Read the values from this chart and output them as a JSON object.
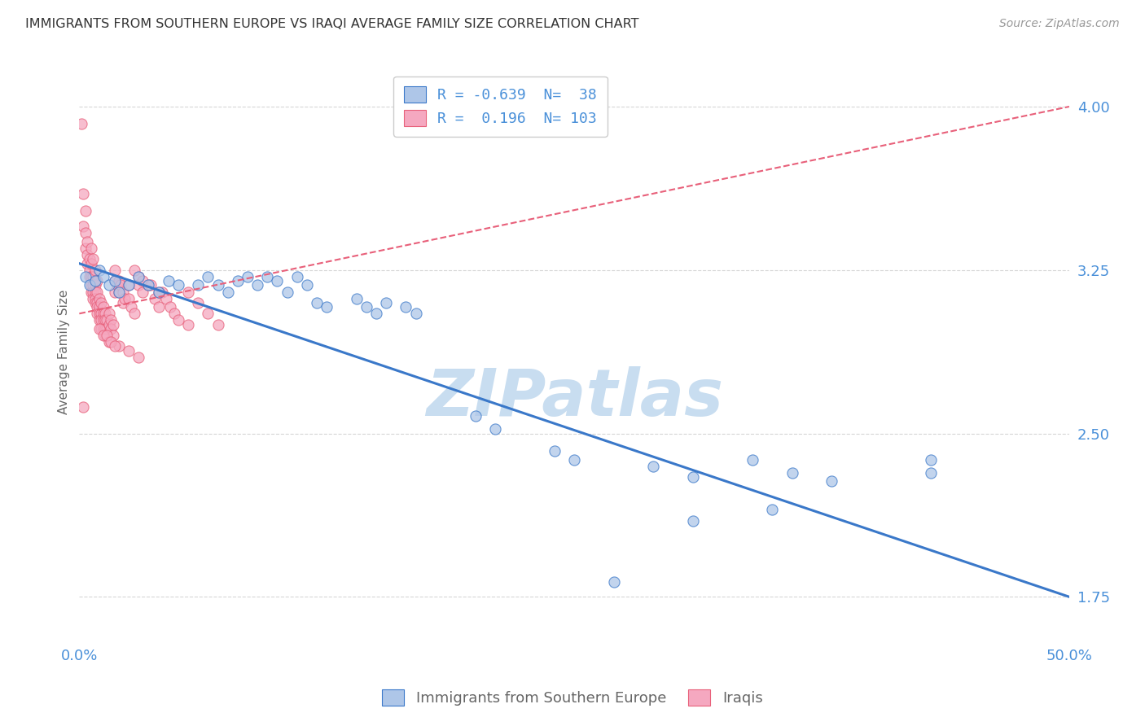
{
  "title": "IMMIGRANTS FROM SOUTHERN EUROPE VS IRAQI AVERAGE FAMILY SIZE CORRELATION CHART",
  "source": "Source: ZipAtlas.com",
  "ylabel": "Average Family Size",
  "yticks": [
    1.75,
    2.5,
    3.25,
    4.0
  ],
  "xlim": [
    0.0,
    0.5
  ],
  "ylim": [
    1.55,
    4.2
  ],
  "watermark": "ZIPatlas",
  "blue_scatter": [
    [
      0.003,
      3.22
    ],
    [
      0.005,
      3.18
    ],
    [
      0.008,
      3.2
    ],
    [
      0.01,
      3.25
    ],
    [
      0.012,
      3.22
    ],
    [
      0.015,
      3.18
    ],
    [
      0.018,
      3.2
    ],
    [
      0.02,
      3.15
    ],
    [
      0.025,
      3.18
    ],
    [
      0.03,
      3.22
    ],
    [
      0.035,
      3.18
    ],
    [
      0.04,
      3.15
    ],
    [
      0.045,
      3.2
    ],
    [
      0.05,
      3.18
    ],
    [
      0.06,
      3.18
    ],
    [
      0.065,
      3.22
    ],
    [
      0.07,
      3.18
    ],
    [
      0.075,
      3.15
    ],
    [
      0.08,
      3.2
    ],
    [
      0.085,
      3.22
    ],
    [
      0.09,
      3.18
    ],
    [
      0.095,
      3.22
    ],
    [
      0.1,
      3.2
    ],
    [
      0.105,
      3.15
    ],
    [
      0.11,
      3.22
    ],
    [
      0.115,
      3.18
    ],
    [
      0.12,
      3.1
    ],
    [
      0.125,
      3.08
    ],
    [
      0.14,
      3.12
    ],
    [
      0.145,
      3.08
    ],
    [
      0.15,
      3.05
    ],
    [
      0.155,
      3.1
    ],
    [
      0.165,
      3.08
    ],
    [
      0.17,
      3.05
    ],
    [
      0.2,
      2.58
    ],
    [
      0.21,
      2.52
    ],
    [
      0.24,
      2.42
    ],
    [
      0.25,
      2.38
    ],
    [
      0.29,
      2.35
    ],
    [
      0.31,
      2.3
    ],
    [
      0.34,
      2.38
    ],
    [
      0.36,
      2.32
    ],
    [
      0.38,
      2.28
    ],
    [
      0.43,
      2.38
    ],
    [
      0.27,
      1.82
    ],
    [
      0.31,
      2.1
    ],
    [
      0.35,
      2.15
    ],
    [
      0.43,
      2.32
    ]
  ],
  "pink_scatter": [
    [
      0.001,
      3.92
    ],
    [
      0.002,
      3.6
    ],
    [
      0.003,
      3.52
    ],
    [
      0.002,
      3.45
    ],
    [
      0.003,
      3.42
    ],
    [
      0.003,
      3.35
    ],
    [
      0.004,
      3.38
    ],
    [
      0.004,
      3.32
    ],
    [
      0.004,
      3.28
    ],
    [
      0.005,
      3.3
    ],
    [
      0.005,
      3.25
    ],
    [
      0.005,
      3.22
    ],
    [
      0.006,
      3.28
    ],
    [
      0.006,
      3.22
    ],
    [
      0.006,
      3.18
    ],
    [
      0.006,
      3.15
    ],
    [
      0.007,
      3.22
    ],
    [
      0.007,
      3.18
    ],
    [
      0.007,
      3.15
    ],
    [
      0.007,
      3.12
    ],
    [
      0.008,
      3.18
    ],
    [
      0.008,
      3.15
    ],
    [
      0.008,
      3.12
    ],
    [
      0.008,
      3.1
    ],
    [
      0.009,
      3.15
    ],
    [
      0.009,
      3.1
    ],
    [
      0.009,
      3.08
    ],
    [
      0.009,
      3.05
    ],
    [
      0.01,
      3.12
    ],
    [
      0.01,
      3.08
    ],
    [
      0.01,
      3.05
    ],
    [
      0.01,
      3.02
    ],
    [
      0.011,
      3.1
    ],
    [
      0.011,
      3.05
    ],
    [
      0.011,
      3.02
    ],
    [
      0.011,
      2.98
    ],
    [
      0.012,
      3.08
    ],
    [
      0.012,
      3.05
    ],
    [
      0.012,
      3.02
    ],
    [
      0.012,
      2.98
    ],
    [
      0.013,
      3.05
    ],
    [
      0.013,
      3.02
    ],
    [
      0.013,
      2.98
    ],
    [
      0.013,
      2.95
    ],
    [
      0.014,
      3.02
    ],
    [
      0.014,
      2.98
    ],
    [
      0.015,
      3.05
    ],
    [
      0.015,
      3.0
    ],
    [
      0.016,
      3.02
    ],
    [
      0.016,
      2.98
    ],
    [
      0.017,
      3.0
    ],
    [
      0.017,
      2.95
    ],
    [
      0.018,
      3.25
    ],
    [
      0.018,
      3.2
    ],
    [
      0.018,
      3.15
    ],
    [
      0.019,
      3.18
    ],
    [
      0.02,
      3.2
    ],
    [
      0.02,
      3.15
    ],
    [
      0.021,
      3.18
    ],
    [
      0.022,
      3.15
    ],
    [
      0.022,
      3.1
    ],
    [
      0.023,
      3.12
    ],
    [
      0.025,
      3.18
    ],
    [
      0.025,
      3.12
    ],
    [
      0.026,
      3.08
    ],
    [
      0.028,
      3.05
    ],
    [
      0.03,
      3.22
    ],
    [
      0.03,
      3.18
    ],
    [
      0.032,
      3.15
    ],
    [
      0.035,
      3.18
    ],
    [
      0.038,
      3.12
    ],
    [
      0.04,
      3.08
    ],
    [
      0.042,
      3.15
    ],
    [
      0.044,
      3.12
    ],
    [
      0.046,
      3.08
    ],
    [
      0.048,
      3.05
    ],
    [
      0.05,
      3.02
    ],
    [
      0.055,
      3.0
    ],
    [
      0.028,
      3.25
    ],
    [
      0.032,
      3.2
    ],
    [
      0.036,
      3.18
    ],
    [
      0.04,
      3.15
    ],
    [
      0.01,
      2.98
    ],
    [
      0.012,
      2.95
    ],
    [
      0.015,
      2.92
    ],
    [
      0.02,
      2.9
    ],
    [
      0.025,
      2.88
    ],
    [
      0.03,
      2.85
    ],
    [
      0.006,
      3.35
    ],
    [
      0.007,
      3.3
    ],
    [
      0.008,
      3.25
    ],
    [
      0.009,
      3.2
    ],
    [
      0.014,
      2.95
    ],
    [
      0.016,
      2.92
    ],
    [
      0.018,
      2.9
    ],
    [
      0.002,
      2.62
    ],
    [
      0.055,
      3.15
    ],
    [
      0.06,
      3.1
    ],
    [
      0.065,
      3.05
    ],
    [
      0.07,
      3.0
    ]
  ],
  "blue_line_x": [
    0.0,
    0.5
  ],
  "blue_line_y": [
    3.28,
    1.75
  ],
  "pink_line_x": [
    0.0,
    0.5
  ],
  "pink_line_y": [
    3.05,
    4.0
  ],
  "blue_color": "#aec6e8",
  "pink_color": "#f5a8c0",
  "blue_line_color": "#3a78c9",
  "pink_line_color": "#e8607a",
  "title_color": "#333333",
  "axis_label_color": "#4a90d9",
  "grid_color": "#cccccc",
  "watermark_color": "#c8ddf0"
}
